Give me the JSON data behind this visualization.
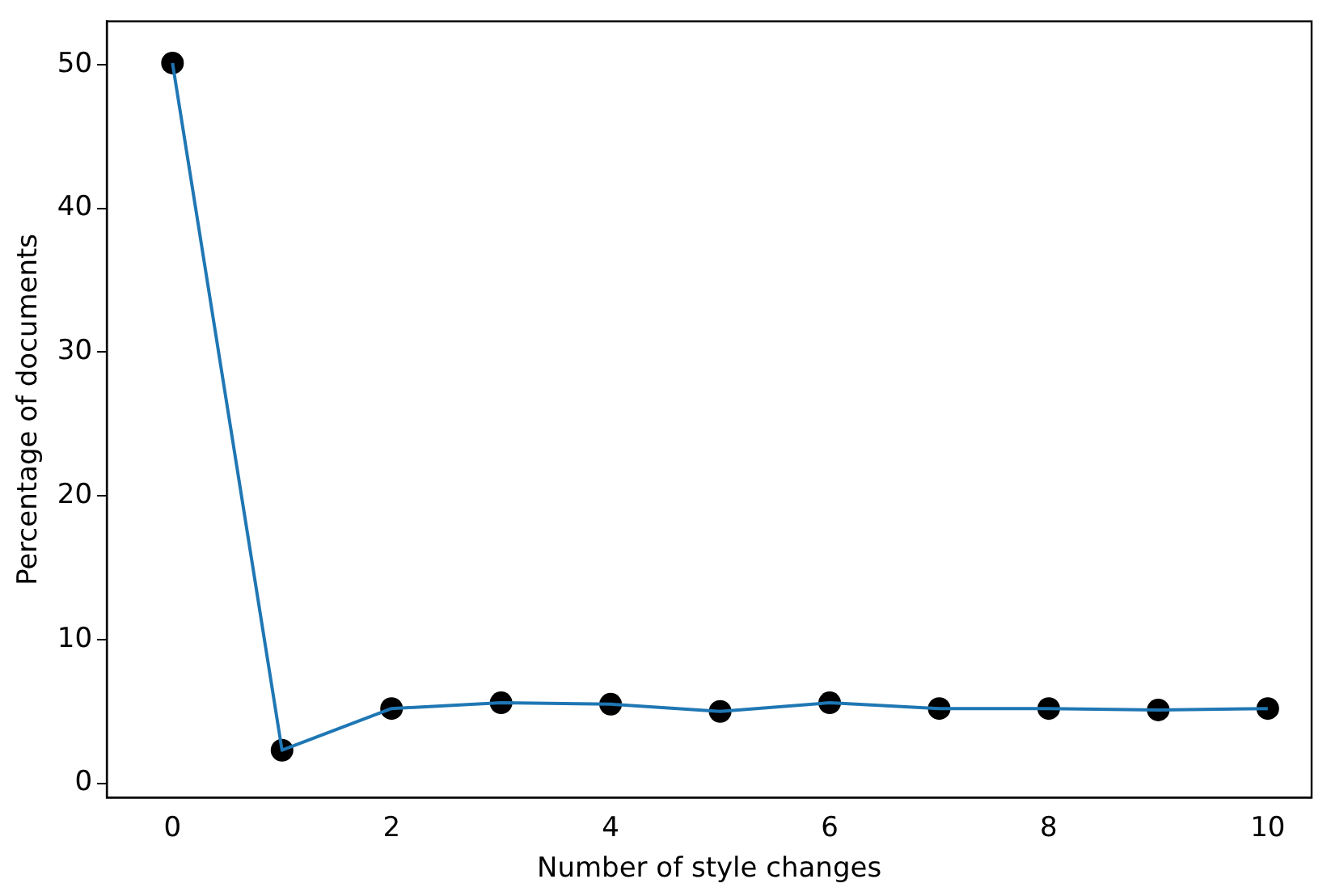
{
  "chart_data": {
    "type": "line",
    "xlabel": "Number of style changes",
    "ylabel": "Percentage of documents",
    "x": [
      0,
      1,
      2,
      3,
      4,
      5,
      6,
      7,
      8,
      9,
      10
    ],
    "series": [
      {
        "color": "#1f77b4",
        "marker": "none",
        "values": [
          50.1,
          2.3,
          5.2,
          5.6,
          5.5,
          5.0,
          5.6,
          5.2,
          5.2,
          5.1,
          5.2
        ]
      },
      {
        "type": "scatter",
        "color": "#000000",
        "marker": "circle",
        "values": [
          50.1,
          2.3,
          5.2,
          5.6,
          5.5,
          5.0,
          5.6,
          5.2,
          5.2,
          5.1,
          5.2
        ]
      }
    ],
    "xlim": [
      -0.6,
      10.4
    ],
    "ylim": [
      -1,
      53
    ],
    "xticks": [
      0,
      2,
      4,
      6,
      8,
      10
    ],
    "yticks": [
      0,
      10,
      20,
      30,
      40,
      50
    ],
    "grid": false,
    "legend": false
  }
}
